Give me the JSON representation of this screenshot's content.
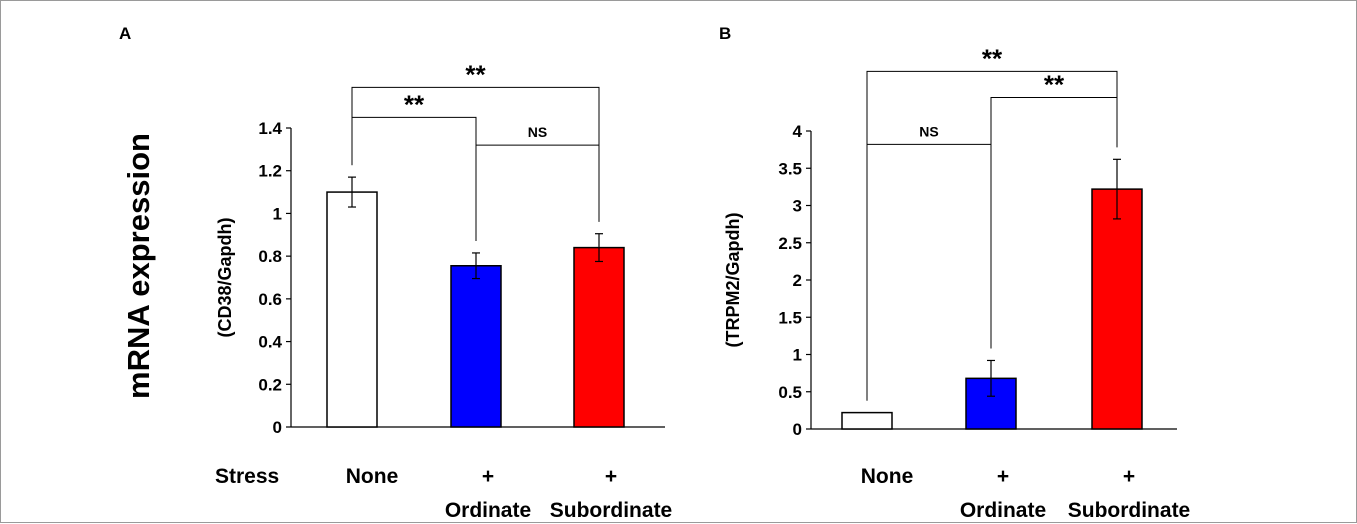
{
  "figure": {
    "ylabel_main": "mRNA expression",
    "stress_label": "Stress"
  },
  "chart_data": [
    {
      "panel": "A",
      "type": "bar",
      "ylabel": "(CD38/Gapdh)",
      "categories": [
        "None",
        "Ordinate",
        "Subordinate"
      ],
      "category_prefix": [
        "",
        "+",
        "+"
      ],
      "values": [
        1.1,
        0.755,
        0.84
      ],
      "errors": [
        0.07,
        0.06,
        0.065
      ],
      "colors": [
        "#ffffff",
        "#0000ff",
        "#ff0000"
      ],
      "ylim": [
        0,
        1.4
      ],
      "yticks": [
        0,
        0.2,
        0.4,
        0.6,
        0.8,
        1,
        1.2,
        1.4
      ],
      "ytick_labels": [
        "0",
        "0.2",
        "0.4",
        "0.6",
        "0.8",
        "1",
        "1.2",
        "1.4"
      ],
      "significance": [
        {
          "from": 0,
          "to": 1,
          "label": "**",
          "level": 1.45
        },
        {
          "from": 1,
          "to": 2,
          "label": "NS",
          "level": 1.32
        },
        {
          "from": 0,
          "to": 2,
          "label": "**",
          "level": 1.59
        }
      ]
    },
    {
      "panel": "B",
      "type": "bar",
      "ylabel": "(TRPM2/Gapdh)",
      "categories": [
        "None",
        "Ordinate",
        "Subordinate"
      ],
      "category_prefix": [
        "",
        "+",
        "+"
      ],
      "values": [
        0.22,
        0.68,
        3.22
      ],
      "errors": [
        0,
        0.24,
        0.4
      ],
      "colors": [
        "#ffffff",
        "#0000ff",
        "#ff0000"
      ],
      "ylim": [
        0,
        4
      ],
      "yticks": [
        0,
        0.5,
        1,
        1.5,
        2,
        2.5,
        3,
        3.5,
        4
      ],
      "ytick_labels": [
        "0",
        "0.5",
        "1",
        "1.5",
        "2",
        "2.5",
        "3",
        "3.5",
        "4"
      ],
      "significance": [
        {
          "from": 0,
          "to": 1,
          "label": "NS",
          "level": 3.82
        },
        {
          "from": 1,
          "to": 2,
          "label": "**",
          "level": 4.45
        },
        {
          "from": 0,
          "to": 2,
          "label": "**",
          "level": 4.8
        }
      ]
    }
  ]
}
